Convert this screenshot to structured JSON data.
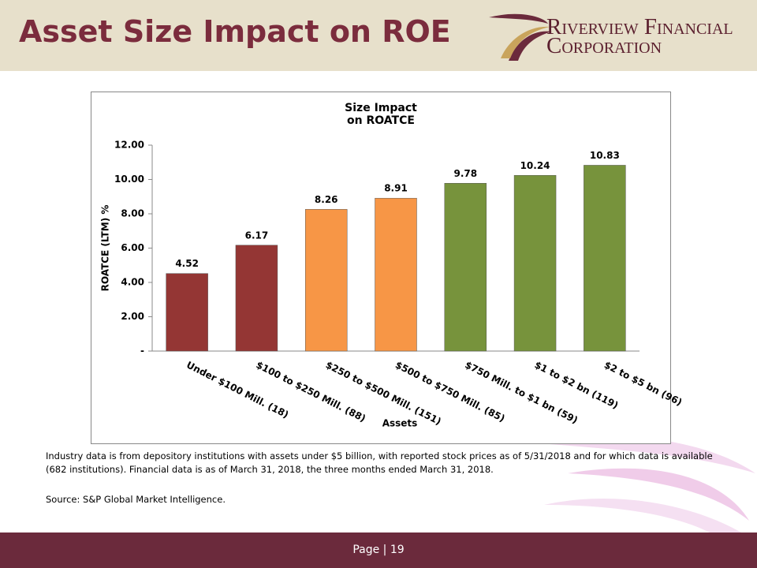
{
  "header": {
    "title": "Asset Size Impact on ROE",
    "logo": [
      "Riverview Financial",
      "Corporation"
    ]
  },
  "chart_data": {
    "type": "bar",
    "title": "Size Impact on ROATCE",
    "x_label": "Assets",
    "y_label": "ROATCE (LTM) %",
    "categories": [
      "Under $100 Mill. (18)",
      "$100 to $250 Mill. (88)",
      "$250 to $500 Mill. (151)",
      "$500 to $750 Mill. (85)",
      "$750 Mill. to $1 bn (59)",
      "$1 to $2 bn (119)",
      "$2 to $5 bn (96)"
    ],
    "values": [
      4.52,
      6.17,
      8.26,
      8.91,
      9.78,
      10.24,
      10.83
    ],
    "colors": [
      "#943634",
      "#943634",
      "#f79646",
      "#f79646",
      "#77933c",
      "#77933c",
      "#77933c"
    ],
    "ylim": [
      0,
      12
    ],
    "yticks": [
      {
        "value": 0,
        "label": "-"
      },
      {
        "value": 2,
        "label": "2.00"
      },
      {
        "value": 4,
        "label": "4.00"
      },
      {
        "value": 6,
        "label": "6.00"
      },
      {
        "value": 8,
        "label": "8.00"
      },
      {
        "value": 10,
        "label": "10.00"
      },
      {
        "value": 12,
        "label": "12.00"
      }
    ],
    "grid": false
  },
  "footnote": "Industry data is from depository institutions with assets under $5 billion, with reported stock prices as of 5/31/2018 and for which data is available (682 institutions). Financial data is as of March 31, 2018, the three months ended March 31, 2018.",
  "source": "Source: S&P Global Market Intelligence.",
  "footer": "Page | 19"
}
